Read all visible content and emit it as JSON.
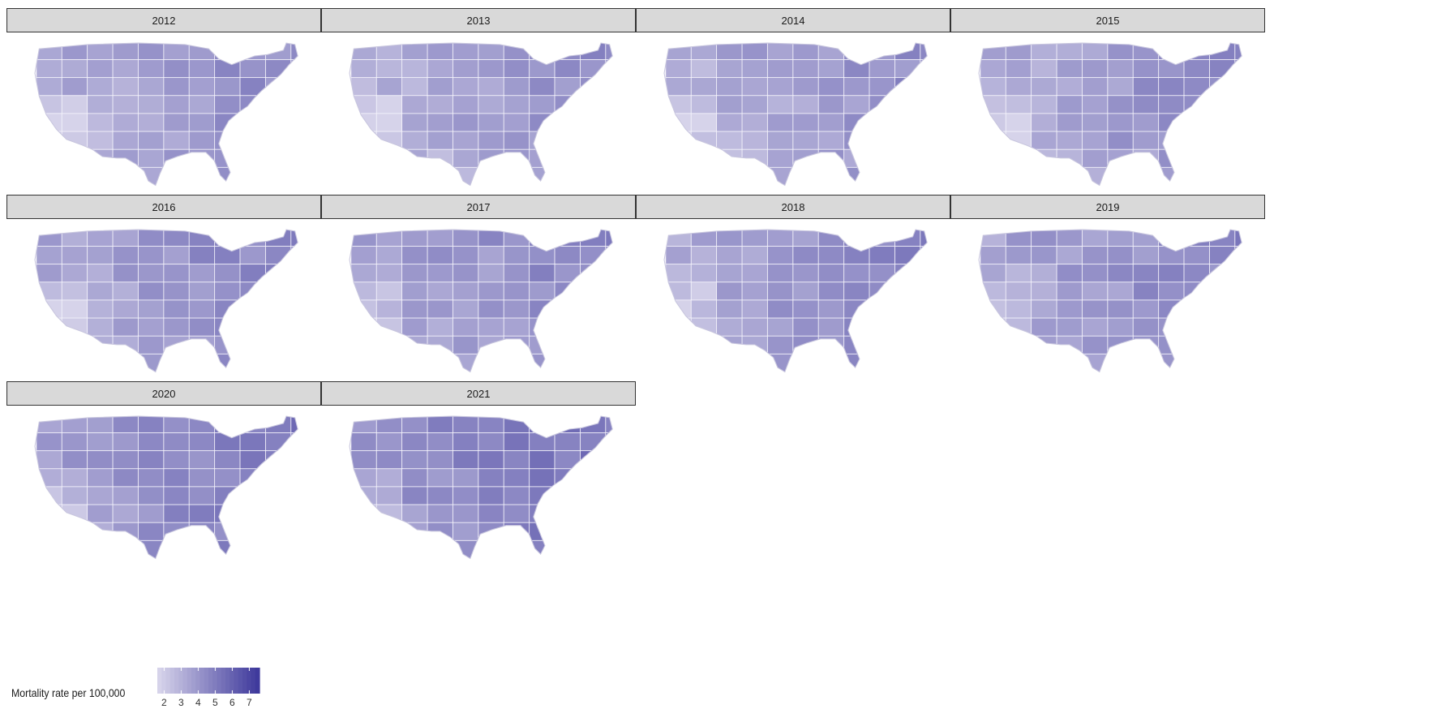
{
  "panels": [
    {
      "year": "2012",
      "level": 0.36
    },
    {
      "year": "2013",
      "level": 0.34
    },
    {
      "year": "2014",
      "level": 0.35
    },
    {
      "year": "2015",
      "level": 0.37
    },
    {
      "year": "2016",
      "level": 0.4
    },
    {
      "year": "2017",
      "level": 0.41
    },
    {
      "year": "2018",
      "level": 0.4
    },
    {
      "year": "2019",
      "level": 0.4
    },
    {
      "year": "2020",
      "level": 0.47
    },
    {
      "year": "2021",
      "level": 0.52
    }
  ],
  "legend": {
    "title": "Mortality rate per 100,000",
    "ticks": [
      2,
      3,
      4,
      5,
      6,
      7
    ],
    "min": 1.6,
    "max": 7.6
  },
  "colors": {
    "low": "#d6d3ea",
    "high": "#3f3a9c",
    "background": "#ffffff",
    "strip": "#d9d9d9"
  }
}
